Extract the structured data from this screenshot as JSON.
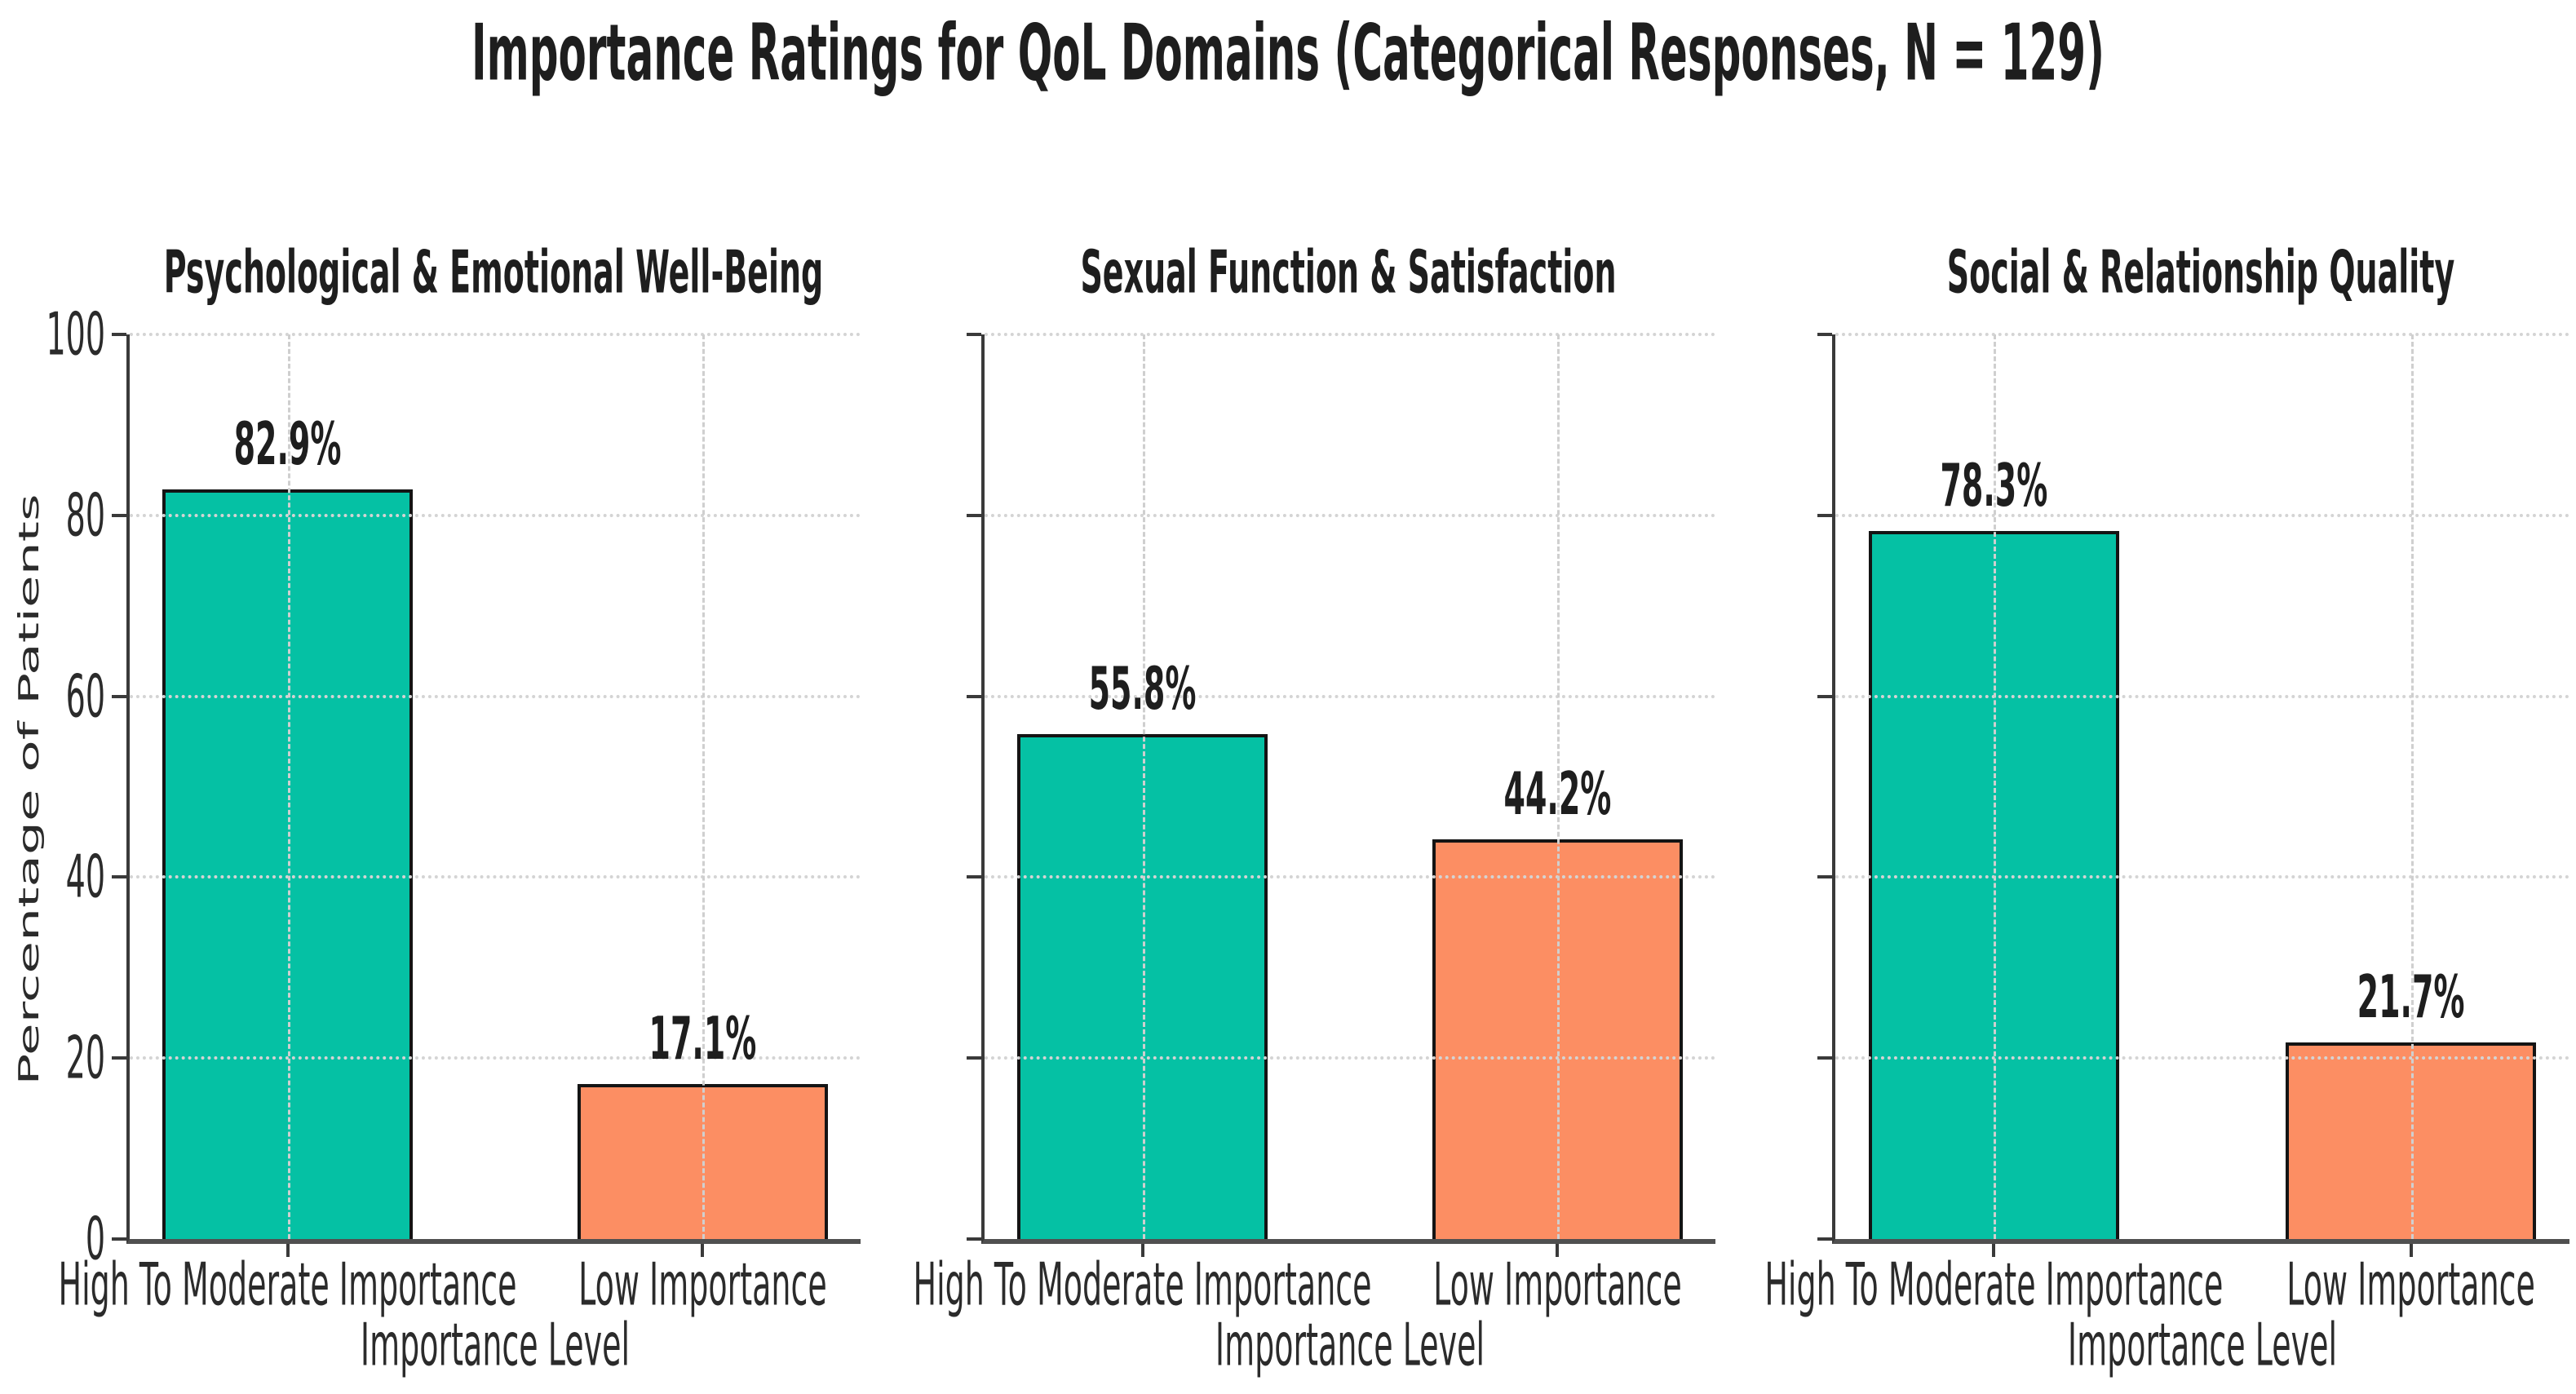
{
  "figure_title": "Importance Ratings for QoL Domains (Categorical Responses, N = 129)",
  "colors": {
    "teal": "#05c1a4",
    "orange": "#fc8e63",
    "bar_edge": "#141414",
    "spine": "#3a3a3a",
    "grid": "#d4d4d4",
    "title_text": "#1e1e1e",
    "tick_text": "#2b2b2b"
  },
  "chart_data": [
    {
      "type": "bar",
      "title": "Psychological & Emotional Well-Being",
      "categories": [
        "High To Moderate Importance",
        "Low Importance"
      ],
      "values": [
        82.9,
        17.1
      ],
      "value_labels": [
        "82.9%",
        "17.1%"
      ],
      "bar_colors": [
        "teal",
        "orange"
      ],
      "xlabel": "Importance Level",
      "ylabel": "Percentage of Patients",
      "ylim": [
        0,
        100
      ],
      "yticks": [
        0,
        20,
        40,
        60,
        80,
        100
      ],
      "grid": true,
      "y_tick_labels_visible": true
    },
    {
      "type": "bar",
      "title": "Sexual Function & Satisfaction",
      "categories": [
        "High To Moderate Importance",
        "Low Importance"
      ],
      "values": [
        55.8,
        44.2
      ],
      "value_labels": [
        "55.8%",
        "44.2%"
      ],
      "bar_colors": [
        "teal",
        "orange"
      ],
      "xlabel": "Importance Level",
      "ylabel": "Percentage of Patients",
      "ylim": [
        0,
        100
      ],
      "yticks": [
        0,
        20,
        40,
        60,
        80,
        100
      ],
      "grid": true,
      "y_tick_labels_visible": false
    },
    {
      "type": "bar",
      "title": "Social & Relationship Quality",
      "categories": [
        "High To Moderate Importance",
        "Low Importance"
      ],
      "values": [
        78.3,
        21.7
      ],
      "value_labels": [
        "78.3%",
        "21.7%"
      ],
      "bar_colors": [
        "teal",
        "orange"
      ],
      "xlabel": "Importance Level",
      "ylabel": "Percentage of Patients",
      "ylim": [
        0,
        100
      ],
      "yticks": [
        0,
        20,
        40,
        60,
        80,
        100
      ],
      "grid": true,
      "y_tick_labels_visible": false
    }
  ]
}
